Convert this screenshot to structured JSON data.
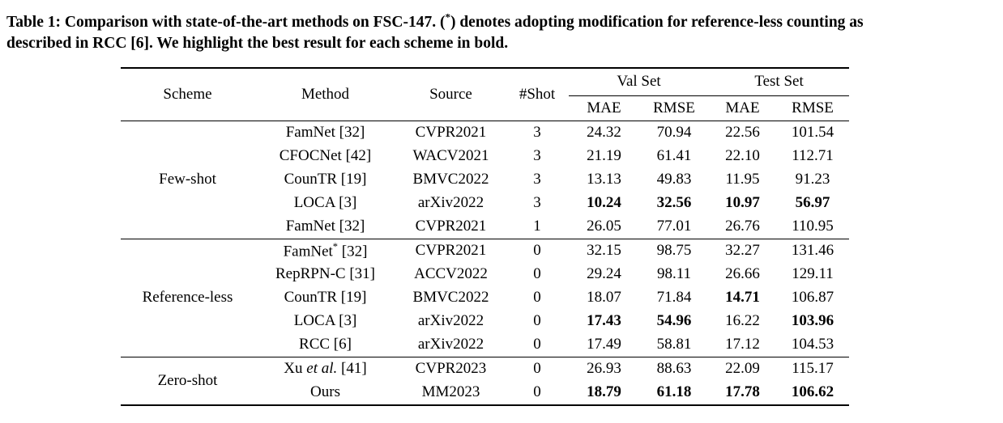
{
  "caption": {
    "line1_part1": "Table 1: Comparison with state-of-the-art methods on FSC-147. (",
    "line1_sup": "*",
    "line1_part2": ") denotes adopting modification for reference-less counting as",
    "line2": "described in RCC [6]. We highlight the best result for each scheme in bold."
  },
  "table": {
    "columns": {
      "scheme": "Scheme",
      "method": "Method",
      "source": "Source",
      "shot": "#Shot"
    },
    "group_headers": {
      "val": "Val Set",
      "test": "Test Set"
    },
    "metrics": [
      "MAE",
      "RMSE",
      "MAE",
      "RMSE"
    ],
    "groups": [
      {
        "scheme": "Few-shot",
        "rows": [
          {
            "method": "FamNet [32]",
            "source": "CVPR2021",
            "shot": "3",
            "values": [
              "24.32",
              "70.94",
              "22.56",
              "101.54"
            ],
            "bold": [
              0,
              0,
              0,
              0
            ]
          },
          {
            "method": "CFOCNet [42]",
            "source": "WACV2021",
            "shot": "3",
            "values": [
              "21.19",
              "61.41",
              "22.10",
              "112.71"
            ],
            "bold": [
              0,
              0,
              0,
              0
            ]
          },
          {
            "method": "CounTR [19]",
            "source": "BMVC2022",
            "shot": "3",
            "values": [
              "13.13",
              "49.83",
              "11.95",
              "91.23"
            ],
            "bold": [
              0,
              0,
              0,
              0
            ]
          },
          {
            "method": "LOCA [3]",
            "source": "arXiv2022",
            "shot": "3",
            "values": [
              "10.24",
              "32.56",
              "10.97",
              "56.97"
            ],
            "bold": [
              1,
              1,
              1,
              1
            ]
          },
          {
            "method": "FamNet [32]",
            "source": "CVPR2021",
            "shot": "1",
            "values": [
              "26.05",
              "77.01",
              "26.76",
              "110.95"
            ],
            "bold": [
              0,
              0,
              0,
              0
            ]
          }
        ]
      },
      {
        "scheme": "Reference-less",
        "rows": [
          {
            "method": "FamNet* [32]",
            "source": "CVPR2021",
            "shot": "0",
            "values": [
              "32.15",
              "98.75",
              "32.27",
              "131.46"
            ],
            "bold": [
              0,
              0,
              0,
              0
            ]
          },
          {
            "method": "RepRPN-C [31]",
            "source": "ACCV2022",
            "shot": "0",
            "values": [
              "29.24",
              "98.11",
              "26.66",
              "129.11"
            ],
            "bold": [
              0,
              0,
              0,
              0
            ]
          },
          {
            "method": "CounTR [19]",
            "source": "BMVC2022",
            "shot": "0",
            "values": [
              "18.07",
              "71.84",
              "14.71",
              "106.87"
            ],
            "bold": [
              0,
              0,
              1,
              0
            ]
          },
          {
            "method": "LOCA [3]",
            "source": "arXiv2022",
            "shot": "0",
            "values": [
              "17.43",
              "54.96",
              "16.22",
              "103.96"
            ],
            "bold": [
              1,
              1,
              0,
              1
            ]
          },
          {
            "method": "RCC [6]",
            "source": "arXiv2022",
            "shot": "0",
            "values": [
              "17.49",
              "58.81",
              "17.12",
              "104.53"
            ],
            "bold": [
              0,
              0,
              0,
              0
            ]
          }
        ]
      },
      {
        "scheme": "Zero-shot",
        "rows": [
          {
            "method": "Xu et al. [41]",
            "source": "CVPR2023",
            "shot": "0",
            "values": [
              "26.93",
              "88.63",
              "22.09",
              "115.17"
            ],
            "bold": [
              0,
              0,
              0,
              0
            ]
          },
          {
            "method": "Ours",
            "source": "MM2023",
            "shot": "0",
            "values": [
              "18.79",
              "61.18",
              "17.78",
              "106.62"
            ],
            "bold": [
              1,
              1,
              1,
              1
            ]
          }
        ]
      }
    ]
  }
}
